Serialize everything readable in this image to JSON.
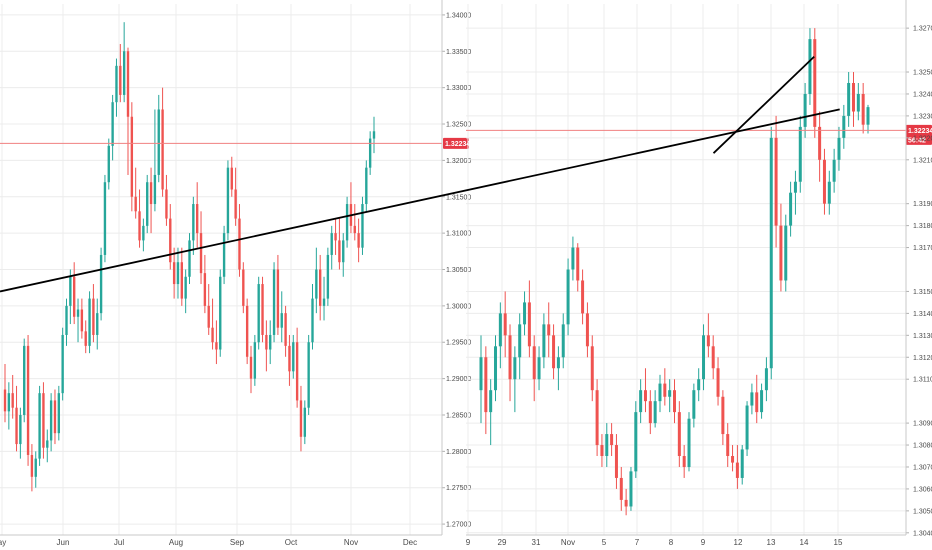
{
  "colors": {
    "up": "#26a69a",
    "down": "#ef5350",
    "grid": "#ececec",
    "price_line": "#f08080",
    "badge": "#e53945",
    "trendline": "#000000",
    "axis_text": "#4a4a4a"
  },
  "chart_data": [
    {
      "type": "candlestick",
      "xlabel": "",
      "ylabel": "",
      "x_ticks": [
        "ay",
        "Jun",
        "Jul",
        "Aug",
        "Sep",
        "Oct",
        "Nov",
        "Dec"
      ],
      "y_ticks": [
        "1.34000",
        "1.33500",
        "1.33000",
        "1.32500",
        "1.32000",
        "1.31500",
        "1.31000",
        "1.30500",
        "1.30000",
        "1.29500",
        "1.29000",
        "1.28500",
        "1.28000",
        "1.27500",
        "1.27000"
      ],
      "ylim": [
        1.2685,
        1.3415
      ],
      "grid": true,
      "current_price": "1.32234",
      "current_value": 1.32234,
      "candles": [
        [
          1.2885,
          1.292,
          1.284,
          1.2855
        ],
        [
          1.2855,
          1.2895,
          1.283,
          1.288
        ],
        [
          1.288,
          1.2905,
          1.2845,
          1.286
        ],
        [
          1.286,
          1.289,
          1.28,
          1.281
        ],
        [
          1.281,
          1.286,
          1.279,
          1.285
        ],
        [
          1.285,
          1.2955,
          1.284,
          1.2945
        ],
        [
          1.2945,
          1.296,
          1.278,
          1.2795
        ],
        [
          1.2795,
          1.281,
          1.2745,
          1.2765
        ],
        [
          1.2765,
          1.28,
          1.275,
          1.279
        ],
        [
          1.279,
          1.289,
          1.278,
          1.288
        ],
        [
          1.288,
          1.2895,
          1.279,
          1.2805
        ],
        [
          1.2805,
          1.283,
          1.2785,
          1.2815
        ],
        [
          1.2815,
          1.288,
          1.28,
          1.287
        ],
        [
          1.287,
          1.2885,
          1.281,
          1.2825
        ],
        [
          1.2825,
          1.289,
          1.2815,
          1.288
        ],
        [
          1.288,
          1.297,
          1.287,
          1.296
        ],
        [
          1.296,
          1.301,
          1.2945,
          1.3
        ],
        [
          1.3,
          1.305,
          1.2975,
          1.304
        ],
        [
          1.304,
          1.306,
          1.2975,
          1.2985
        ],
        [
          1.2985,
          1.301,
          1.295,
          1.2995
        ],
        [
          1.2995,
          1.301,
          1.2955,
          1.2965
        ],
        [
          1.2965,
          1.298,
          1.2935,
          1.2945
        ],
        [
          1.2945,
          1.302,
          1.2935,
          1.301
        ],
        [
          1.301,
          1.303,
          1.295,
          1.296
        ],
        [
          1.296,
          1.301,
          1.294,
          1.299
        ],
        [
          1.299,
          1.308,
          1.298,
          1.307
        ],
        [
          1.307,
          1.318,
          1.306,
          1.317
        ],
        [
          1.317,
          1.323,
          1.316,
          1.322
        ],
        [
          1.322,
          1.329,
          1.32,
          1.328
        ],
        [
          1.328,
          1.334,
          1.326,
          1.333
        ],
        [
          1.333,
          1.336,
          1.328,
          1.329
        ],
        [
          1.329,
          1.339,
          1.328,
          1.335
        ],
        [
          1.335,
          1.3355,
          1.318,
          1.326
        ],
        [
          1.326,
          1.328,
          1.313,
          1.315
        ],
        [
          1.315,
          1.319,
          1.312,
          1.313
        ],
        [
          1.313,
          1.316,
          1.308,
          1.309
        ],
        [
          1.309,
          1.312,
          1.3075,
          1.311
        ],
        [
          1.311,
          1.318,
          1.31,
          1.317
        ],
        [
          1.317,
          1.319,
          1.31,
          1.314
        ],
        [
          1.314,
          1.327,
          1.313,
          1.318
        ],
        [
          1.318,
          1.329,
          1.317,
          1.327
        ],
        [
          1.327,
          1.33,
          1.315,
          1.316
        ],
        [
          1.316,
          1.318,
          1.311,
          1.312
        ],
        [
          1.312,
          1.314,
          1.305,
          1.306
        ],
        [
          1.306,
          1.308,
          1.301,
          1.303
        ],
        [
          1.303,
          1.308,
          1.301,
          1.306
        ],
        [
          1.306,
          1.308,
          1.3,
          1.301
        ],
        [
          1.301,
          1.305,
          1.299,
          1.304
        ],
        [
          1.304,
          1.31,
          1.303,
          1.309
        ],
        [
          1.309,
          1.315,
          1.307,
          1.314
        ],
        [
          1.314,
          1.317,
          1.308,
          1.31
        ],
        [
          1.31,
          1.313,
          1.303,
          1.3045
        ],
        [
          1.3045,
          1.307,
          1.299,
          1.3
        ],
        [
          1.3,
          1.303,
          1.296,
          1.297
        ],
        [
          1.297,
          1.301,
          1.294,
          1.295
        ],
        [
          1.295,
          1.298,
          1.292,
          1.294
        ],
        [
          1.294,
          1.305,
          1.293,
          1.304
        ],
        [
          1.304,
          1.311,
          1.303,
          1.31
        ],
        [
          1.31,
          1.32,
          1.309,
          1.319
        ],
        [
          1.319,
          1.3205,
          1.315,
          1.316
        ],
        [
          1.316,
          1.319,
          1.311,
          1.312
        ],
        [
          1.312,
          1.314,
          1.304,
          1.305
        ],
        [
          1.305,
          1.306,
          1.299,
          1.3
        ],
        [
          1.3,
          1.301,
          1.292,
          1.293
        ],
        [
          1.293,
          1.2945,
          1.288,
          1.29
        ],
        [
          1.29,
          1.296,
          1.289,
          1.295
        ],
        [
          1.295,
          1.304,
          1.294,
          1.303
        ],
        [
          1.303,
          1.304,
          1.295,
          1.296
        ],
        [
          1.296,
          1.298,
          1.291,
          1.294
        ],
        [
          1.294,
          1.298,
          1.292,
          1.296
        ],
        [
          1.296,
          1.306,
          1.295,
          1.305
        ],
        [
          1.305,
          1.307,
          1.296,
          1.297
        ],
        [
          1.297,
          1.302,
          1.295,
          1.299
        ],
        [
          1.299,
          1.3,
          1.293,
          1.2945
        ],
        [
          1.2945,
          1.296,
          1.289,
          1.291
        ],
        [
          1.291,
          1.296,
          1.29,
          1.295
        ],
        [
          1.295,
          1.297,
          1.286,
          1.287
        ],
        [
          1.287,
          1.289,
          1.28,
          1.282
        ],
        [
          1.282,
          1.287,
          1.281,
          1.286
        ],
        [
          1.286,
          1.296,
          1.285,
          1.295
        ],
        [
          1.295,
          1.303,
          1.294,
          1.301
        ],
        [
          1.301,
          1.308,
          1.299,
          1.305
        ],
        [
          1.305,
          1.307,
          1.298,
          1.3
        ],
        [
          1.3,
          1.304,
          1.298,
          1.301
        ],
        [
          1.301,
          1.308,
          1.3,
          1.307
        ],
        [
          1.307,
          1.311,
          1.305,
          1.31
        ],
        [
          1.31,
          1.312,
          1.307,
          1.309
        ],
        [
          1.309,
          1.312,
          1.305,
          1.306
        ],
        [
          1.306,
          1.31,
          1.304,
          1.309
        ],
        [
          1.309,
          1.315,
          1.308,
          1.314
        ],
        [
          1.314,
          1.317,
          1.31,
          1.311
        ],
        [
          1.311,
          1.314,
          1.309,
          1.31
        ],
        [
          1.31,
          1.312,
          1.306,
          1.308
        ],
        [
          1.308,
          1.315,
          1.307,
          1.314
        ],
        [
          1.314,
          1.32,
          1.313,
          1.319
        ],
        [
          1.319,
          1.324,
          1.318,
          1.323
        ],
        [
          1.323,
          1.326,
          1.321,
          1.324
        ]
      ]
    },
    {
      "type": "candlestick",
      "xlabel": "",
      "ylabel": "",
      "x_ticks": [
        "9",
        "29",
        "31",
        "Nov",
        "5",
        "7",
        "8",
        "9",
        "12",
        "13",
        "14",
        "15"
      ],
      "y_ticks": [
        "1.32700",
        "1.32500",
        "1.32400",
        "1.32300",
        "1.32200",
        "1.32100",
        "1.31900",
        "1.31800",
        "1.31700",
        "1.31500",
        "1.31400",
        "1.31300",
        "1.31200",
        "1.31100",
        "1.30900",
        "1.30800",
        "1.30700",
        "1.30600",
        "1.30500",
        "1.30400"
      ],
      "ylim": [
        1.3039,
        1.3281
      ],
      "grid": true,
      "current_price": "1.32234",
      "countdown": "56:42",
      "current_value": 1.32234,
      "trendlines": [
        {
          "x1": 1.3,
          "y1": 1.3213,
          "x2": 10.3,
          "y2": 1.3257
        },
        {
          "x1": 9.3,
          "y1": 1.315,
          "x2": 11.05,
          "y2": 1.3233
        }
      ],
      "candles": [
        [
          1.3105,
          1.313,
          1.309,
          1.312
        ],
        [
          1.312,
          1.3125,
          1.3085,
          1.3095
        ],
        [
          1.3095,
          1.311,
          1.308,
          1.3105
        ],
        [
          1.3105,
          1.313,
          1.31,
          1.3125
        ],
        [
          1.3125,
          1.3145,
          1.3115,
          1.314
        ],
        [
          1.314,
          1.315,
          1.312,
          1.313
        ],
        [
          1.313,
          1.3135,
          1.31,
          1.311
        ],
        [
          1.311,
          1.3125,
          1.3095,
          1.312
        ],
        [
          1.312,
          1.314,
          1.311,
          1.3135
        ],
        [
          1.3135,
          1.315,
          1.313,
          1.3145
        ],
        [
          1.3145,
          1.3155,
          1.312,
          1.3125
        ],
        [
          1.3125,
          1.313,
          1.31,
          1.311
        ],
        [
          1.311,
          1.3125,
          1.3105,
          1.312
        ],
        [
          1.312,
          1.314,
          1.3115,
          1.3135
        ],
        [
          1.3135,
          1.3145,
          1.312,
          1.313
        ],
        [
          1.313,
          1.3135,
          1.311,
          1.3115
        ],
        [
          1.3115,
          1.3125,
          1.3105,
          1.312
        ],
        [
          1.312,
          1.314,
          1.3115,
          1.3135
        ],
        [
          1.3135,
          1.3165,
          1.313,
          1.316
        ],
        [
          1.316,
          1.3175,
          1.3155,
          1.317
        ],
        [
          1.317,
          1.3172,
          1.315,
          1.3155
        ],
        [
          1.3155,
          1.316,
          1.3135,
          1.314
        ],
        [
          1.314,
          1.3145,
          1.312,
          1.3125
        ],
        [
          1.3125,
          1.313,
          1.31,
          1.3105
        ],
        [
          1.3105,
          1.311,
          1.3075,
          1.308
        ],
        [
          1.308,
          1.3085,
          1.307,
          1.3075
        ],
        [
          1.3075,
          1.309,
          1.307,
          1.3085
        ],
        [
          1.3085,
          1.309,
          1.3075,
          1.308
        ],
        [
          1.308,
          1.3085,
          1.306,
          1.3065
        ],
        [
          1.3065,
          1.307,
          1.305,
          1.3055
        ],
        [
          1.3055,
          1.306,
          1.3048,
          1.3052
        ],
        [
          1.3052,
          1.307,
          1.305,
          1.3068
        ],
        [
          1.3068,
          1.31,
          1.3065,
          1.3095
        ],
        [
          1.3095,
          1.311,
          1.309,
          1.3105
        ],
        [
          1.3105,
          1.3115,
          1.3095,
          1.31
        ],
        [
          1.31,
          1.3105,
          1.3085,
          1.309
        ],
        [
          1.309,
          1.3105,
          1.3088,
          1.31
        ],
        [
          1.31,
          1.3112,
          1.3095,
          1.3108
        ],
        [
          1.3108,
          1.3115,
          1.3098,
          1.3102
        ],
        [
          1.3102,
          1.311,
          1.3095,
          1.3105
        ],
        [
          1.3105,
          1.311,
          1.309,
          1.3095
        ],
        [
          1.3095,
          1.31,
          1.307,
          1.3075
        ],
        [
          1.3075,
          1.308,
          1.3065,
          1.307
        ],
        [
          1.307,
          1.3095,
          1.3068,
          1.3092
        ],
        [
          1.3092,
          1.3108,
          1.3088,
          1.3105
        ],
        [
          1.3105,
          1.3115,
          1.31,
          1.311
        ],
        [
          1.311,
          1.3135,
          1.3105,
          1.313
        ],
        [
          1.313,
          1.314,
          1.312,
          1.3125
        ],
        [
          1.3125,
          1.313,
          1.311,
          1.3115
        ],
        [
          1.3115,
          1.312,
          1.3098,
          1.3102
        ],
        [
          1.3102,
          1.3105,
          1.308,
          1.3085
        ],
        [
          1.3085,
          1.309,
          1.307,
          1.3075
        ],
        [
          1.3075,
          1.308,
          1.3068,
          1.3072
        ],
        [
          1.3072,
          1.308,
          1.306,
          1.3065
        ],
        [
          1.3065,
          1.308,
          1.3062,
          1.3078
        ],
        [
          1.3078,
          1.31,
          1.3075,
          1.3098
        ],
        [
          1.3098,
          1.3108,
          1.3094,
          1.3104
        ],
        [
          1.3104,
          1.3112,
          1.309,
          1.3095
        ],
        [
          1.3095,
          1.3108,
          1.3092,
          1.3105
        ],
        [
          1.3105,
          1.312,
          1.31,
          1.3115
        ],
        [
          1.3115,
          1.3225,
          1.311,
          1.322
        ],
        [
          1.322,
          1.323,
          1.317,
          1.318
        ],
        [
          1.318,
          1.319,
          1.315,
          1.3155
        ],
        [
          1.3155,
          1.3185,
          1.315,
          1.318
        ],
        [
          1.318,
          1.32,
          1.3175,
          1.3195
        ],
        [
          1.3195,
          1.3205,
          1.3185,
          1.32
        ],
        [
          1.32,
          1.323,
          1.3195,
          1.3225
        ],
        [
          1.3225,
          1.3245,
          1.322,
          1.324
        ],
        [
          1.324,
          1.327,
          1.3235,
          1.3265
        ],
        [
          1.3265,
          1.327,
          1.322,
          1.3225
        ],
        [
          1.3225,
          1.3232,
          1.32,
          1.321
        ],
        [
          1.321,
          1.3215,
          1.3185,
          1.319
        ],
        [
          1.319,
          1.3205,
          1.3185,
          1.32
        ],
        [
          1.32,
          1.3215,
          1.3195,
          1.321
        ],
        [
          1.321,
          1.3225,
          1.3205,
          1.322
        ],
        [
          1.322,
          1.3235,
          1.3215,
          1.323
        ],
        [
          1.323,
          1.325,
          1.3225,
          1.3245
        ],
        [
          1.3245,
          1.325,
          1.3225,
          1.3232
        ],
        [
          1.3232,
          1.3245,
          1.3228,
          1.324
        ],
        [
          1.324,
          1.3245,
          1.3222,
          1.3226
        ],
        [
          1.3226,
          1.3235,
          1.3222,
          1.3234
        ]
      ]
    }
  ]
}
